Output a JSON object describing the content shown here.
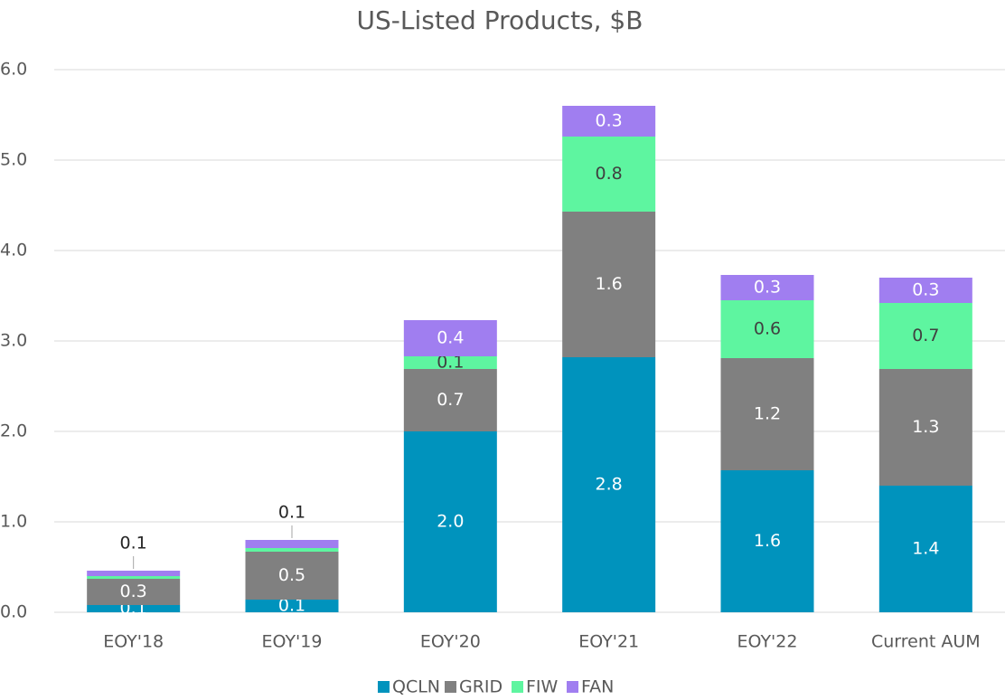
{
  "chart_data": {
    "type": "stacked_bar",
    "title": "US-Listed Products, $B",
    "categories": [
      "EOY'18",
      "EOY'19",
      "EOY'20",
      "EOY'21",
      "EOY'22",
      "Current AUM"
    ],
    "series": [
      {
        "name": "QCLN",
        "color": "#0093bd",
        "values": [
          0.08,
          0.14,
          2.0,
          2.82,
          1.57,
          1.4
        ],
        "value_labels": [
          "0.1",
          "0.1",
          "2.0",
          "2.8",
          "1.6",
          "1.4"
        ]
      },
      {
        "name": "GRID",
        "color": "#808080",
        "values": [
          0.29,
          0.53,
          0.69,
          1.61,
          1.24,
          1.29
        ],
        "value_labels": [
          "0.3",
          "0.5",
          "0.7",
          "1.6",
          "1.2",
          "1.3"
        ]
      },
      {
        "name": "FIW",
        "color": "#5ef5a0",
        "values": [
          0.03,
          0.04,
          0.14,
          0.83,
          0.64,
          0.73
        ],
        "value_labels": [
          null,
          null,
          "0.1",
          "0.8",
          "0.6",
          "0.7"
        ]
      },
      {
        "name": "FAN",
        "color": "#a07ef0",
        "values": [
          0.06,
          0.09,
          0.4,
          0.34,
          0.28,
          0.28
        ],
        "value_labels": [
          "0.1",
          "0.1",
          "0.4",
          "0.3",
          "0.3",
          "0.3"
        ]
      }
    ],
    "ylim": [
      0,
      6
    ],
    "yticks": [
      {
        "value": 0,
        "label": "0.0"
      },
      {
        "value": 1,
        "label": "1.0"
      },
      {
        "value": 2,
        "label": "2.0"
      },
      {
        "value": 3,
        "label": "3.0"
      },
      {
        "value": 4,
        "label": "4.0"
      },
      {
        "value": 5,
        "label": "5.0"
      },
      {
        "value": 6,
        "label": "6.0"
      }
    ],
    "grid": true,
    "legend": "bottom"
  }
}
